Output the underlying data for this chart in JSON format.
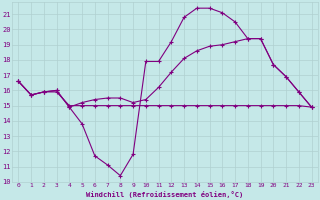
{
  "xlabel": "Windchill (Refroidissement éolien,°C)",
  "background_color": "#c5e8e8",
  "grid_color": "#b0d0d0",
  "line_color": "#800080",
  "line1": {
    "x": [
      0,
      1,
      2,
      3,
      4,
      5,
      6,
      7,
      8,
      9,
      10,
      11,
      12,
      13,
      14,
      15,
      16,
      17,
      18,
      19,
      20,
      21,
      22,
      23
    ],
    "y": [
      16.6,
      15.7,
      15.9,
      16.0,
      14.9,
      13.8,
      11.7,
      11.1,
      10.4,
      11.8,
      17.9,
      17.9,
      19.2,
      20.8,
      21.4,
      21.4,
      21.1,
      20.5,
      19.4,
      19.4,
      17.7,
      16.9,
      15.9,
      14.9
    ]
  },
  "line2": {
    "x": [
      0,
      1,
      2,
      3,
      4,
      5,
      6,
      7,
      8,
      9,
      10,
      11,
      12,
      13,
      14,
      15,
      16,
      17,
      18,
      19,
      20,
      21,
      22,
      23
    ],
    "y": [
      16.6,
      15.7,
      15.9,
      15.9,
      15.0,
      15.0,
      15.0,
      15.0,
      15.0,
      15.0,
      15.0,
      15.0,
      15.0,
      15.0,
      15.0,
      15.0,
      15.0,
      15.0,
      15.0,
      15.0,
      15.0,
      15.0,
      15.0,
      14.9
    ]
  },
  "line3": {
    "x": [
      0,
      1,
      2,
      3,
      4,
      5,
      6,
      7,
      8,
      9,
      10,
      11,
      12,
      13,
      14,
      15,
      16,
      17,
      18,
      19,
      20,
      21,
      22,
      23
    ],
    "y": [
      16.6,
      15.7,
      15.9,
      16.0,
      14.9,
      15.2,
      15.4,
      15.5,
      15.5,
      15.2,
      15.4,
      16.2,
      17.2,
      18.1,
      18.6,
      18.9,
      19.0,
      19.2,
      19.4,
      19.4,
      17.7,
      16.9,
      15.9,
      14.9
    ]
  },
  "ylim": [
    10,
    21.8
  ],
  "xlim": [
    -0.5,
    23.5
  ],
  "yticks": [
    10,
    11,
    12,
    13,
    14,
    15,
    16,
    17,
    18,
    19,
    20,
    21
  ],
  "xticks": [
    0,
    1,
    2,
    3,
    4,
    5,
    6,
    7,
    8,
    9,
    10,
    11,
    12,
    13,
    14,
    15,
    16,
    17,
    18,
    19,
    20,
    21,
    22,
    23
  ]
}
